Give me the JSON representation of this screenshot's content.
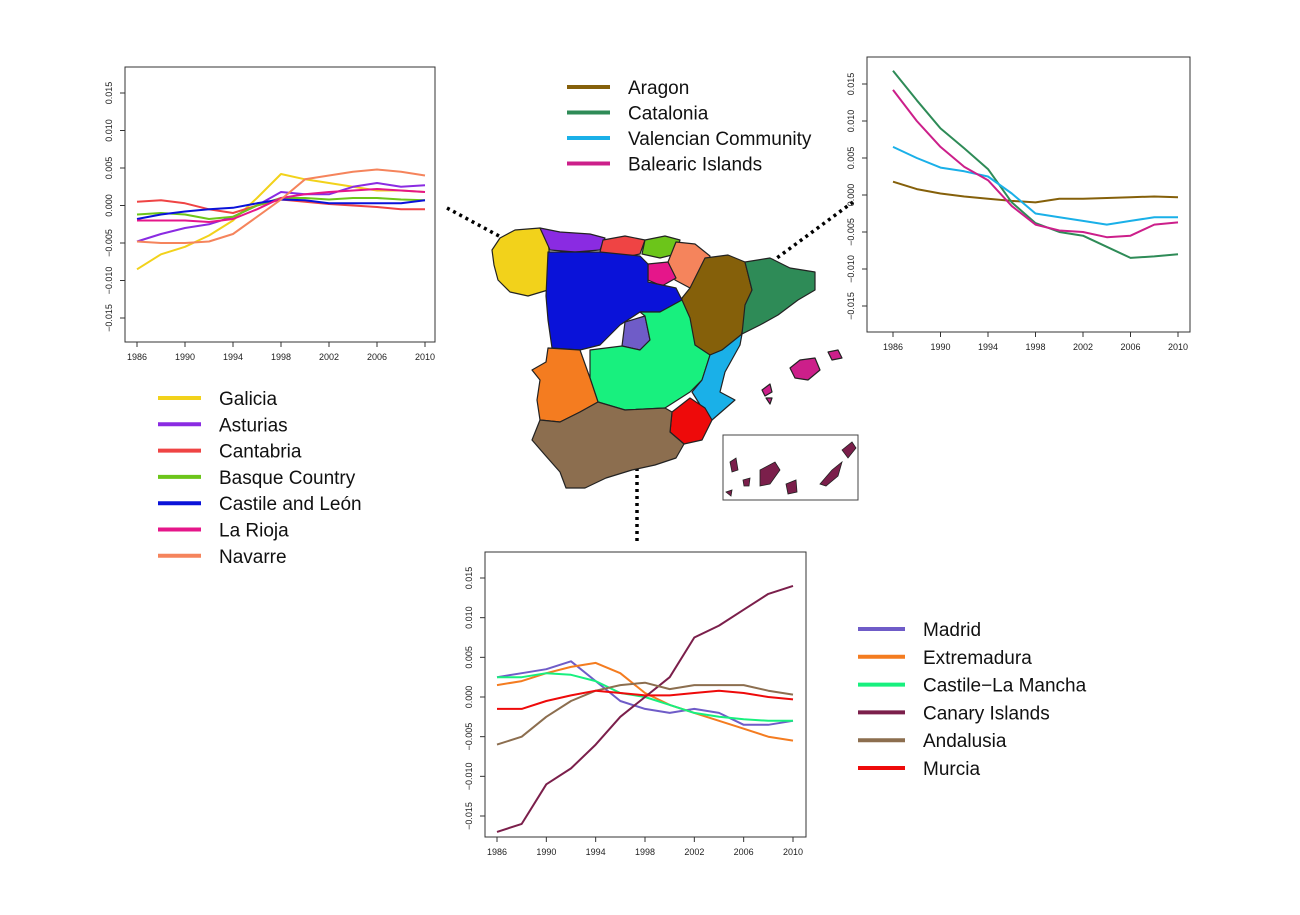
{
  "legends": {
    "north": [
      "Galicia",
      "Asturias",
      "Cantabria",
      "Basque Country",
      "Castile and León",
      "La Rioja",
      "Navarre"
    ],
    "east": [
      "Aragon",
      "Catalonia",
      "Valencian Community",
      "Balearic Islands"
    ],
    "south": [
      "Madrid",
      "Extremadura",
      "Castile−La Mancha",
      "Canary Islands",
      "Andalusia",
      "Murcia"
    ]
  },
  "colors": {
    "Galicia": "#f2d21b",
    "Asturias": "#8a2be2",
    "Cantabria": "#ef4444",
    "Basque Country": "#6cc51a",
    "Castile and León": "#0a12d9",
    "La Rioja": "#e5168a",
    "Navarre": "#f5845c",
    "Aragon": "#85600a",
    "Catalonia": "#2e8b57",
    "Valencian Community": "#1ab0e8",
    "Balearic Islands": "#cc1f8a",
    "Madrid": "#6f5cc8",
    "Extremadura": "#f47c20",
    "Castile−La Mancha": "#18f07e",
    "Canary Islands": "#7b1f4b",
    "Andalusia": "#8c6e4f",
    "Murcia": "#ee0a0a"
  },
  "chart_data": [
    {
      "type": "line",
      "x": [
        1986,
        1988,
        1990,
        1992,
        1994,
        1996,
        1998,
        2000,
        2002,
        2004,
        2006,
        2008,
        2010
      ],
      "ylim": [
        -0.018,
        0.018
      ],
      "xticks": [
        "1986",
        "1990",
        "1994",
        "1998",
        "2002",
        "2006",
        "2010"
      ],
      "yticks": [
        "−0.015",
        "−0.010",
        "−0.005",
        "0.000",
        "0.005",
        "0.010",
        "0.015"
      ],
      "series": [
        {
          "name": "Galicia",
          "values": [
            -0.0085,
            -0.0065,
            -0.0055,
            -0.004,
            -0.002,
            0.001,
            0.0042,
            0.0035,
            0.003,
            0.0025,
            0.002,
            0.002,
            0.0018
          ]
        },
        {
          "name": "Asturias",
          "values": [
            -0.0048,
            -0.0038,
            -0.003,
            -0.0025,
            -0.0015,
            0.0,
            0.0018,
            0.0015,
            0.0015,
            0.0025,
            0.003,
            0.0025,
            0.0027
          ]
        },
        {
          "name": "Cantabria",
          "values": [
            0.0005,
            0.0007,
            0.0003,
            -0.0005,
            -0.001,
            0.0,
            0.0008,
            0.0005,
            0.0002,
            0.0,
            -0.0002,
            -0.0005,
            -0.0005
          ]
        },
        {
          "name": "Basque Country",
          "values": [
            -0.0012,
            -0.001,
            -0.0012,
            -0.0018,
            -0.0015,
            0.0,
            0.001,
            0.001,
            0.0008,
            0.001,
            0.001,
            0.0008,
            0.0007
          ]
        },
        {
          "name": "Castile and León",
          "values": [
            -0.0018,
            -0.0012,
            -0.0008,
            -0.0005,
            -0.0003,
            0.0003,
            0.0008,
            0.0007,
            0.0003,
            0.0003,
            0.0003,
            0.0003,
            0.0007
          ]
        },
        {
          "name": "La Rioja",
          "values": [
            -0.002,
            -0.002,
            -0.002,
            -0.0022,
            -0.0018,
            -0.0005,
            0.001,
            0.0015,
            0.0018,
            0.002,
            0.0022,
            0.002,
            0.0018
          ]
        },
        {
          "name": "Navarre",
          "values": [
            -0.0048,
            -0.005,
            -0.005,
            -0.0048,
            -0.0038,
            -0.0015,
            0.0008,
            0.0035,
            0.004,
            0.0045,
            0.0048,
            0.0045,
            0.004
          ]
        }
      ]
    },
    {
      "type": "line",
      "x": [
        1986,
        1988,
        1990,
        1992,
        1994,
        1996,
        1998,
        2000,
        2002,
        2004,
        2006,
        2008,
        2010
      ],
      "ylim": [
        -0.018,
        0.018
      ],
      "xticks": [
        "1986",
        "1990",
        "1994",
        "1998",
        "2002",
        "2006",
        "2010"
      ],
      "yticks": [
        "−0.015",
        "−0.010",
        "−0.005",
        "0.000",
        "0.005",
        "0.010",
        "0.015"
      ],
      "series": [
        {
          "name": "Aragon",
          "values": [
            0.0018,
            0.0008,
            0.0002,
            -0.0002,
            -0.0005,
            -0.0008,
            -0.001,
            -0.0005,
            -0.0005,
            -0.0004,
            -0.0003,
            -0.0002,
            -0.0003
          ]
        },
        {
          "name": "Catalonia",
          "values": [
            0.0168,
            0.0128,
            0.009,
            0.0063,
            0.0035,
            -0.001,
            -0.0038,
            -0.005,
            -0.0055,
            -0.007,
            -0.0085,
            -0.0083,
            -0.008
          ]
        },
        {
          "name": "Valencian Community",
          "values": [
            0.0065,
            0.005,
            0.0037,
            0.0032,
            0.0025,
            0.0002,
            -0.0025,
            -0.003,
            -0.0035,
            -0.004,
            -0.0035,
            -0.003,
            -0.003
          ]
        },
        {
          "name": "Balearic Islands",
          "values": [
            0.0142,
            0.01,
            0.0065,
            0.0038,
            0.002,
            -0.0015,
            -0.004,
            -0.0048,
            -0.005,
            -0.0057,
            -0.0055,
            -0.004,
            -0.0037
          ]
        }
      ]
    },
    {
      "type": "line",
      "x": [
        1986,
        1988,
        1990,
        1992,
        1994,
        1996,
        1998,
        2000,
        2002,
        2004,
        2006,
        2008,
        2010
      ],
      "ylim": [
        -0.018,
        0.018
      ],
      "xticks": [
        "1986",
        "1990",
        "1994",
        "1998",
        "2002",
        "2006",
        "2010"
      ],
      "yticks": [
        "−0.015",
        "−0.010",
        "−0.005",
        "0.000",
        "0.005",
        "0.010",
        "0.015"
      ],
      "series": [
        {
          "name": "Madrid",
          "values": [
            0.0025,
            0.003,
            0.0035,
            0.0045,
            0.002,
            -0.0005,
            -0.0015,
            -0.002,
            -0.0015,
            -0.002,
            -0.0035,
            -0.0035,
            -0.003
          ]
        },
        {
          "name": "Extremadura",
          "values": [
            0.0015,
            0.002,
            0.003,
            0.0038,
            0.0043,
            0.003,
            0.0005,
            -0.001,
            -0.002,
            -0.003,
            -0.004,
            -0.005,
            -0.0055
          ]
        },
        {
          "name": "Castile−La Mancha",
          "values": [
            0.0025,
            0.0025,
            0.003,
            0.0028,
            0.002,
            0.0005,
            0.0,
            -0.001,
            -0.002,
            -0.0025,
            -0.0028,
            -0.003,
            -0.003
          ]
        },
        {
          "name": "Canary Islands",
          "values": [
            -0.017,
            -0.016,
            -0.011,
            -0.009,
            -0.006,
            -0.0025,
            0.0,
            0.0025,
            0.0075,
            0.009,
            0.011,
            0.013,
            0.014
          ]
        },
        {
          "name": "Andalusia",
          "values": [
            -0.006,
            -0.005,
            -0.0025,
            -0.0005,
            0.0008,
            0.0015,
            0.0018,
            0.001,
            0.0015,
            0.0015,
            0.0015,
            0.0008,
            0.0003
          ]
        },
        {
          "name": "Murcia",
          "values": [
            -0.0015,
            -0.0015,
            -0.0005,
            0.0002,
            0.0008,
            0.0005,
            0.0002,
            0.0002,
            0.0005,
            0.0008,
            0.0005,
            0.0,
            -0.0003
          ]
        }
      ]
    }
  ]
}
